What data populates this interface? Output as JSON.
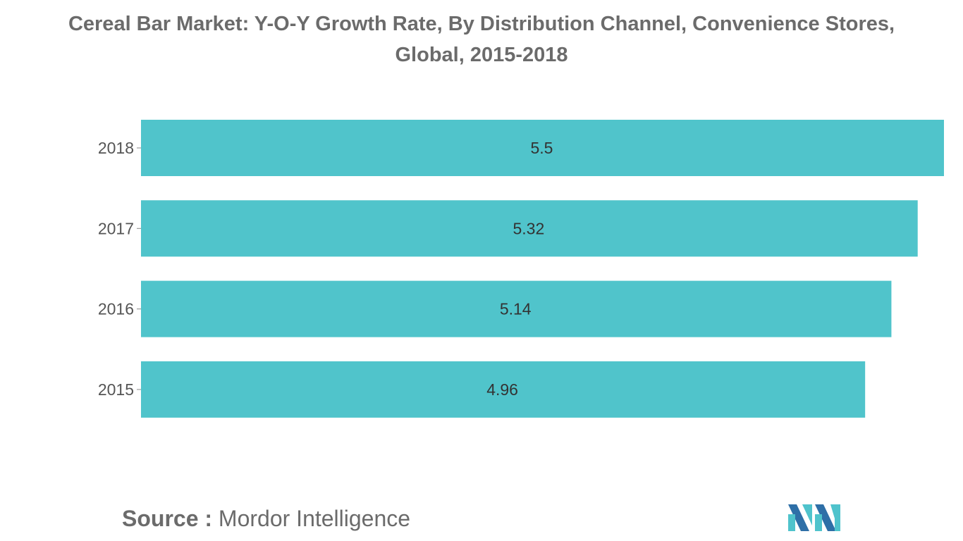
{
  "header": {
    "title_line1": "Cereal Bar Market: Y-O-Y Growth Rate, By Distribution Channel, Convenience Stores,",
    "title_line2": "Global, 2015-2018"
  },
  "footer": {
    "source_label": "Source :",
    "source_value": "Mordor Intelligence"
  },
  "colors": {
    "bar": "#50c4cb",
    "text": "#333333",
    "axis_text": "#555555"
  },
  "chart_data": {
    "type": "bar",
    "orientation": "horizontal",
    "categories": [
      "2018",
      "2017",
      "2016",
      "2015"
    ],
    "values": [
      5.5,
      5.32,
      5.14,
      4.96
    ],
    "data_labels": [
      "5.5",
      "5.32",
      "5.14",
      "4.96"
    ],
    "xlim": [
      0,
      5.5
    ],
    "grid": false,
    "legend": "none"
  }
}
